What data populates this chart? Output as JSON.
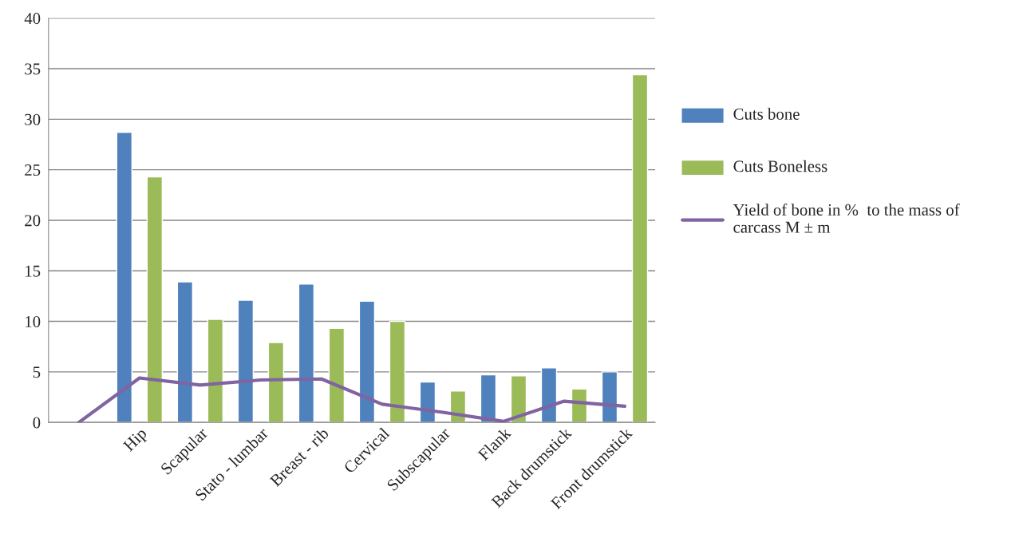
{
  "chart_data": {
    "type": "bar",
    "categories": [
      null,
      "Hip",
      "Scapular",
      "Stato - lumbar",
      "Breast - rib",
      "Cervical",
      "Subscapular",
      "Flank",
      "Back drumstick",
      "Front drumstick"
    ],
    "series": [
      {
        "name": "Cuts bone",
        "color": "#4f81bd",
        "values": [
          null,
          28.7,
          13.9,
          12.1,
          13.7,
          12.0,
          4.0,
          4.7,
          5.4,
          5.0
        ]
      },
      {
        "name": "Cuts Boneless",
        "color": "#9bbb59",
        "values": [
          null,
          24.3,
          10.2,
          7.9,
          9.3,
          10.0,
          3.1,
          4.6,
          3.3,
          34.4
        ]
      },
      {
        "name": "Yield of bone in %  to the mass of carcass M ± m",
        "color": "#8064a2",
        "type": "line",
        "values": [
          0.0,
          4.4,
          3.7,
          4.2,
          4.3,
          1.8,
          1.0,
          0.1,
          2.1,
          1.6
        ]
      }
    ],
    "ylim": [
      0,
      40
    ],
    "yticks": [
      0,
      5,
      10,
      15,
      20,
      25,
      30,
      35,
      40
    ],
    "grid": "y",
    "legend": "right"
  }
}
